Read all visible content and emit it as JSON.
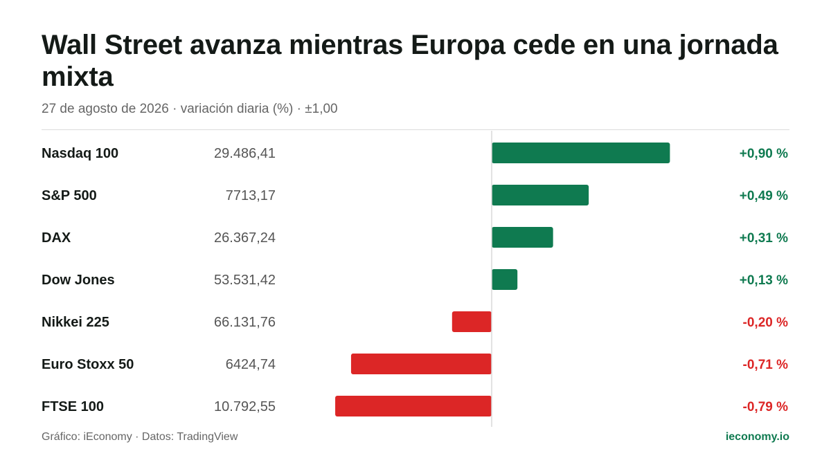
{
  "colors": {
    "positive": "#0f7a50",
    "negative": "#dc2626",
    "axis": "#d9d9d9",
    "label": "#141a17",
    "value": "#555555"
  },
  "header": {
    "title": "Wall Street avanza mientras Europa cede en una jornada mixta",
    "subtitle": "27 de agosto de 2026 · variación diaria (%) · ±1,00"
  },
  "chart_data": {
    "type": "bar",
    "orientation": "horizontal",
    "title": "Wall Street avanza mientras Europa cede en una jornada mixta",
    "subtitle": "27 de agosto de 2026 · variación diaria (%) · ±1,00",
    "xlim": [
      -1.0,
      1.0
    ],
    "grid": false,
    "legend": "none",
    "rows": [
      {
        "name": "Nasdaq 100",
        "level": "29.486,41",
        "change": 0.9,
        "change_label": "+0,90 %"
      },
      {
        "name": "S&P 500",
        "level": "7713,17",
        "change": 0.49,
        "change_label": "+0,49 %"
      },
      {
        "name": "DAX",
        "level": "26.367,24",
        "change": 0.31,
        "change_label": "+0,31 %"
      },
      {
        "name": "Dow Jones",
        "level": "53.531,42",
        "change": 0.13,
        "change_label": "+0,13 %"
      },
      {
        "name": "Nikkei 225",
        "level": "66.131,76",
        "change": -0.2,
        "change_label": "-0,20 %"
      },
      {
        "name": "Euro Stoxx 50",
        "level": "6424,74",
        "change": -0.71,
        "change_label": "-0,71 %"
      },
      {
        "name": "FTSE 100",
        "level": "10.792,55",
        "change": -0.79,
        "change_label": "-0,79 %"
      }
    ]
  },
  "footer": {
    "source": "Gráfico: iEconomy · Datos: TradingView",
    "brand": "ieconomy.io"
  }
}
